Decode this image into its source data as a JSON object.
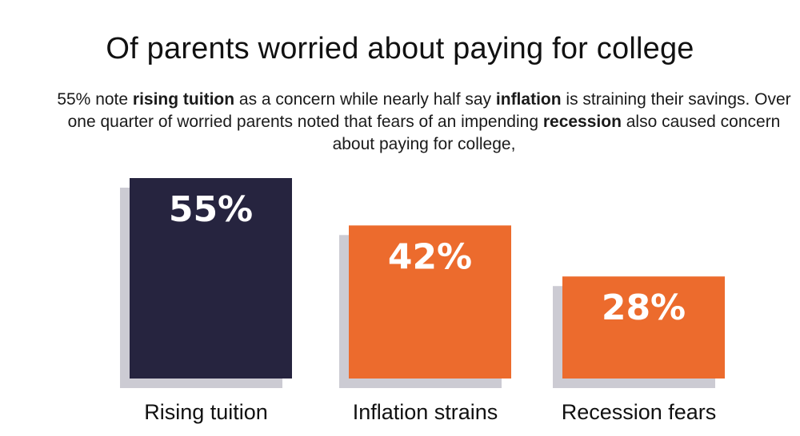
{
  "header": {
    "title": "Of parents worried about paying for college",
    "subtitle_parts": [
      {
        "text": "55% note ",
        "bold": false
      },
      {
        "text": "rising tuition",
        "bold": true
      },
      {
        "text": " as a concern while nearly half say ",
        "bold": false
      },
      {
        "text": "inflation",
        "bold": true
      },
      {
        "text": " is straining their savings. Over one quarter of worried parents noted that fears of an impending ",
        "bold": false
      },
      {
        "text": "recession",
        "bold": true
      },
      {
        "text": " also caused concern about paying for college,",
        "bold": false
      }
    ]
  },
  "colors": {
    "navy": "#26243f",
    "orange": "#ec6b2d",
    "shadow": "#cccbd3"
  },
  "chart_data": {
    "type": "bar",
    "title": "Of parents worried about paying for college",
    "categories": [
      "Rising tuition",
      "Inflation strains",
      "Recession fears"
    ],
    "values": [
      55,
      42,
      28
    ],
    "value_labels": [
      "55%",
      "42%",
      "28%"
    ],
    "bar_colors": [
      "#26243f",
      "#ec6b2d",
      "#ec6b2d"
    ],
    "ylim": [
      0,
      55
    ],
    "grid": false,
    "legend": "none",
    "xlabel": "",
    "ylabel": ""
  }
}
